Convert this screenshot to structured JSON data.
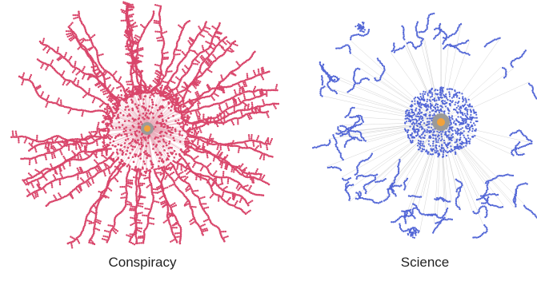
{
  "networks": [
    {
      "caption": "Conspiracy",
      "node_color": "#d9466b",
      "edge_color": "#e7a6b6",
      "center_color": "#f2a23c",
      "center_ring_color": "#9a9a9a"
    },
    {
      "caption": "Science",
      "node_color": "#5266d6",
      "edge_color": "#c9c9c9",
      "center_color": "#f2a23c",
      "center_ring_color": "#9a9a9a"
    }
  ]
}
